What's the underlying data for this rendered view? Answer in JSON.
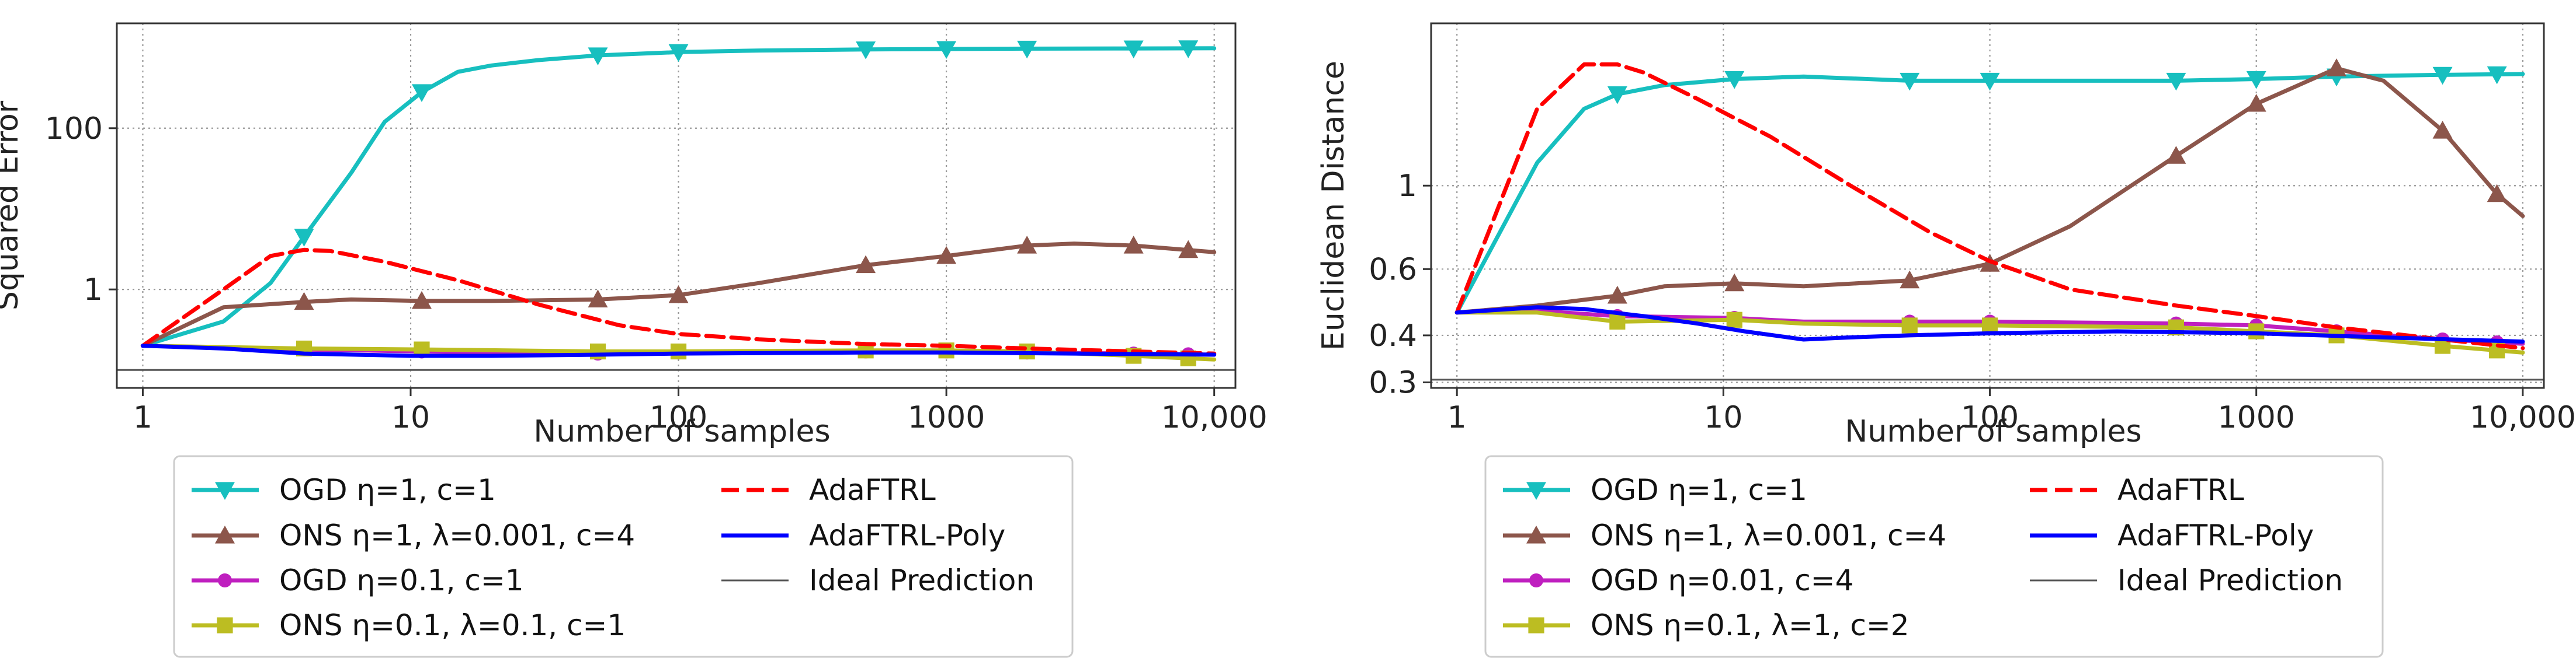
{
  "chart_data": [
    {
      "type": "line",
      "xlabel": "Number of samples",
      "ylabel": "Squared Error",
      "x_scale": "log",
      "y_scale": "log",
      "xlim": [
        0.8,
        12000
      ],
      "ylim": [
        0.06,
        2000
      ],
      "xticks": [
        {
          "value": 1,
          "label": "1"
        },
        {
          "value": 10,
          "label": "10"
        },
        {
          "value": 100,
          "label": "100"
        },
        {
          "value": 1000,
          "label": "1000"
        },
        {
          "value": 10000,
          "label": "10,000"
        }
      ],
      "yticks": [
        {
          "value": 1,
          "label": "1"
        },
        {
          "value": 100,
          "label": "100"
        }
      ],
      "grid": true,
      "legend_position": "below",
      "series": [
        {
          "name": "OGD η=1, c=1",
          "color": "#17bfbf",
          "dash": "solid",
          "marker": "triangle-down",
          "x": [
            1,
            2,
            3,
            4,
            6,
            8,
            11,
            15,
            20,
            30,
            50,
            100,
            200,
            500,
            1000,
            2000,
            5000,
            10000
          ],
          "y": [
            0.2,
            0.4,
            1.2,
            4.5,
            28,
            120,
            280,
            500,
            600,
            700,
            800,
            880,
            920,
            950,
            960,
            970,
            975,
            980
          ],
          "markers_x": [
            4,
            11,
            50,
            100,
            500,
            1000,
            2000,
            5000,
            8000
          ]
        },
        {
          "name": "ONS η=1, λ=0.001, c=4",
          "color": "#8c564b",
          "dash": "solid",
          "marker": "triangle-up",
          "x": [
            1,
            2,
            4,
            6,
            11,
            20,
            50,
            100,
            200,
            500,
            1000,
            2000,
            3000,
            5000,
            10000
          ],
          "y": [
            0.2,
            0.6,
            0.7,
            0.75,
            0.72,
            0.72,
            0.75,
            0.85,
            1.2,
            2.0,
            2.6,
            3.5,
            3.7,
            3.5,
            2.9
          ],
          "markers_x": [
            4,
            11,
            50,
            100,
            500,
            1000,
            2000,
            5000,
            8000
          ]
        },
        {
          "name": "OGD η=0.1, c=1",
          "color": "#bf1fbf",
          "dash": "solid",
          "marker": "circle",
          "x": [
            1,
            4,
            11,
            50,
            100,
            500,
            1000,
            2000,
            5000,
            10000
          ],
          "y": [
            0.2,
            0.18,
            0.17,
            0.16,
            0.165,
            0.17,
            0.17,
            0.165,
            0.16,
            0.155
          ],
          "markers_x": [
            4,
            11,
            50,
            100,
            500,
            1000,
            2000,
            5000,
            8000
          ]
        },
        {
          "name": "ONS η=0.1, λ=0.1, c=1",
          "color": "#bcbd22",
          "dash": "solid",
          "marker": "square",
          "x": [
            1,
            4,
            11,
            50,
            100,
            500,
            1000,
            2000,
            5000,
            10000
          ],
          "y": [
            0.2,
            0.185,
            0.18,
            0.17,
            0.17,
            0.175,
            0.175,
            0.17,
            0.15,
            0.135
          ],
          "markers_x": [
            4,
            11,
            50,
            100,
            500,
            1000,
            2000,
            5000,
            8000
          ]
        },
        {
          "name": "AdaFTRL",
          "color": "#ff0000",
          "dash": "dashed",
          "marker": "none",
          "x": [
            1,
            2,
            3,
            4,
            5,
            8,
            15,
            30,
            60,
            100,
            200,
            500,
            1000,
            2000,
            5000,
            10000
          ],
          "y": [
            0.2,
            1.0,
            2.6,
            3.1,
            3.0,
            2.2,
            1.3,
            0.65,
            0.36,
            0.28,
            0.24,
            0.21,
            0.2,
            0.185,
            0.17,
            0.16
          ]
        },
        {
          "name": "AdaFTRL-Poly",
          "color": "#0000ff",
          "dash": "solid",
          "marker": "none",
          "x": [
            1,
            2,
            4,
            10,
            20,
            50,
            100,
            500,
            1000,
            3000,
            10000
          ],
          "y": [
            0.2,
            0.185,
            0.16,
            0.15,
            0.15,
            0.155,
            0.16,
            0.165,
            0.165,
            0.16,
            0.155
          ]
        },
        {
          "name": "Ideal Prediction",
          "color": "#555555",
          "dash": "solid",
          "marker": "none",
          "x": [
            0.8,
            12000
          ],
          "y": [
            0.1,
            0.1
          ]
        }
      ]
    },
    {
      "type": "line",
      "xlabel": "Number of samples",
      "ylabel": "Euclidean Distance",
      "x_scale": "log",
      "y_scale": "log",
      "xlim": [
        0.8,
        12000
      ],
      "ylim": [
        0.29,
        2.7
      ],
      "xticks": [
        {
          "value": 1,
          "label": "1"
        },
        {
          "value": 10,
          "label": "10"
        },
        {
          "value": 100,
          "label": "100"
        },
        {
          "value": 1000,
          "label": "1000"
        },
        {
          "value": 10000,
          "label": "10,000"
        }
      ],
      "yticks": [
        {
          "value": 0.3,
          "label": "0.3"
        },
        {
          "value": 0.4,
          "label": "0.4"
        },
        {
          "value": 0.6,
          "label": "0.6"
        },
        {
          "value": 1,
          "label": "1"
        }
      ],
      "grid": true,
      "legend_position": "below",
      "series": [
        {
          "name": "OGD η=1, c=1",
          "color": "#17bfbf",
          "dash": "solid",
          "marker": "triangle-down",
          "x": [
            1,
            2,
            3,
            4,
            6,
            11,
            20,
            50,
            100,
            500,
            1000,
            2000,
            5000,
            10000
          ],
          "y": [
            0.46,
            1.15,
            1.6,
            1.75,
            1.85,
            1.92,
            1.95,
            1.9,
            1.9,
            1.9,
            1.92,
            1.95,
            1.97,
            1.98
          ],
          "markers_x": [
            4,
            11,
            50,
            100,
            500,
            1000,
            2000,
            5000,
            8000
          ]
        },
        {
          "name": "ONS η=1, λ=0.001, c=4",
          "color": "#8c564b",
          "dash": "solid",
          "marker": "triangle-up",
          "x": [
            1,
            2,
            4,
            6,
            11,
            20,
            50,
            100,
            200,
            500,
            1000,
            2000,
            3000,
            5000,
            8000,
            10000
          ],
          "y": [
            0.46,
            0.48,
            0.51,
            0.54,
            0.55,
            0.54,
            0.56,
            0.62,
            0.78,
            1.2,
            1.65,
            2.05,
            1.9,
            1.4,
            0.95,
            0.83
          ],
          "markers_x": [
            4,
            11,
            50,
            100,
            500,
            1000,
            2000,
            5000,
            8000
          ]
        },
        {
          "name": "OGD η=0.01, c=4",
          "color": "#bf1fbf",
          "dash": "solid",
          "marker": "circle",
          "x": [
            1,
            2,
            4,
            11,
            20,
            50,
            100,
            500,
            1000,
            2000,
            5000,
            10000
          ],
          "y": [
            0.46,
            0.465,
            0.45,
            0.445,
            0.435,
            0.435,
            0.435,
            0.43,
            0.425,
            0.41,
            0.39,
            0.38
          ],
          "markers_x": [
            4,
            11,
            50,
            100,
            500,
            1000,
            2000,
            5000,
            8000
          ]
        },
        {
          "name": "ONS η=0.1, λ=1, c=2",
          "color": "#bcbd22",
          "dash": "solid",
          "marker": "square",
          "x": [
            1,
            2,
            4,
            11,
            20,
            50,
            100,
            500,
            1000,
            2000,
            5000,
            10000
          ],
          "y": [
            0.46,
            0.46,
            0.435,
            0.44,
            0.43,
            0.425,
            0.425,
            0.42,
            0.41,
            0.4,
            0.375,
            0.36
          ],
          "markers_x": [
            4,
            11,
            50,
            100,
            500,
            1000,
            2000,
            5000,
            8000
          ]
        },
        {
          "name": "AdaFTRL",
          "color": "#ff0000",
          "dash": "dashed",
          "marker": "none",
          "x": [
            1,
            2,
            3,
            4,
            5,
            8,
            15,
            30,
            60,
            100,
            200,
            500,
            1000,
            2000,
            5000,
            10000
          ],
          "y": [
            0.46,
            1.6,
            2.1,
            2.1,
            2.0,
            1.7,
            1.35,
            1.0,
            0.75,
            0.63,
            0.53,
            0.48,
            0.45,
            0.42,
            0.39,
            0.37
          ],
          "markers_x": []
        },
        {
          "name": "AdaFTRL-Poly",
          "color": "#0000ff",
          "dash": "solid",
          "marker": "none",
          "x": [
            1,
            2,
            3,
            5,
            8,
            12,
            20,
            30,
            50,
            100,
            300,
            1000,
            3000,
            10000
          ],
          "y": [
            0.46,
            0.475,
            0.47,
            0.45,
            0.43,
            0.41,
            0.39,
            0.395,
            0.4,
            0.405,
            0.41,
            0.405,
            0.395,
            0.385
          ]
        },
        {
          "name": "Ideal Prediction",
          "color": "#555555",
          "dash": "solid",
          "marker": "none",
          "x": [
            0.8,
            12000
          ],
          "y": [
            0.305,
            0.305
          ]
        }
      ]
    }
  ]
}
